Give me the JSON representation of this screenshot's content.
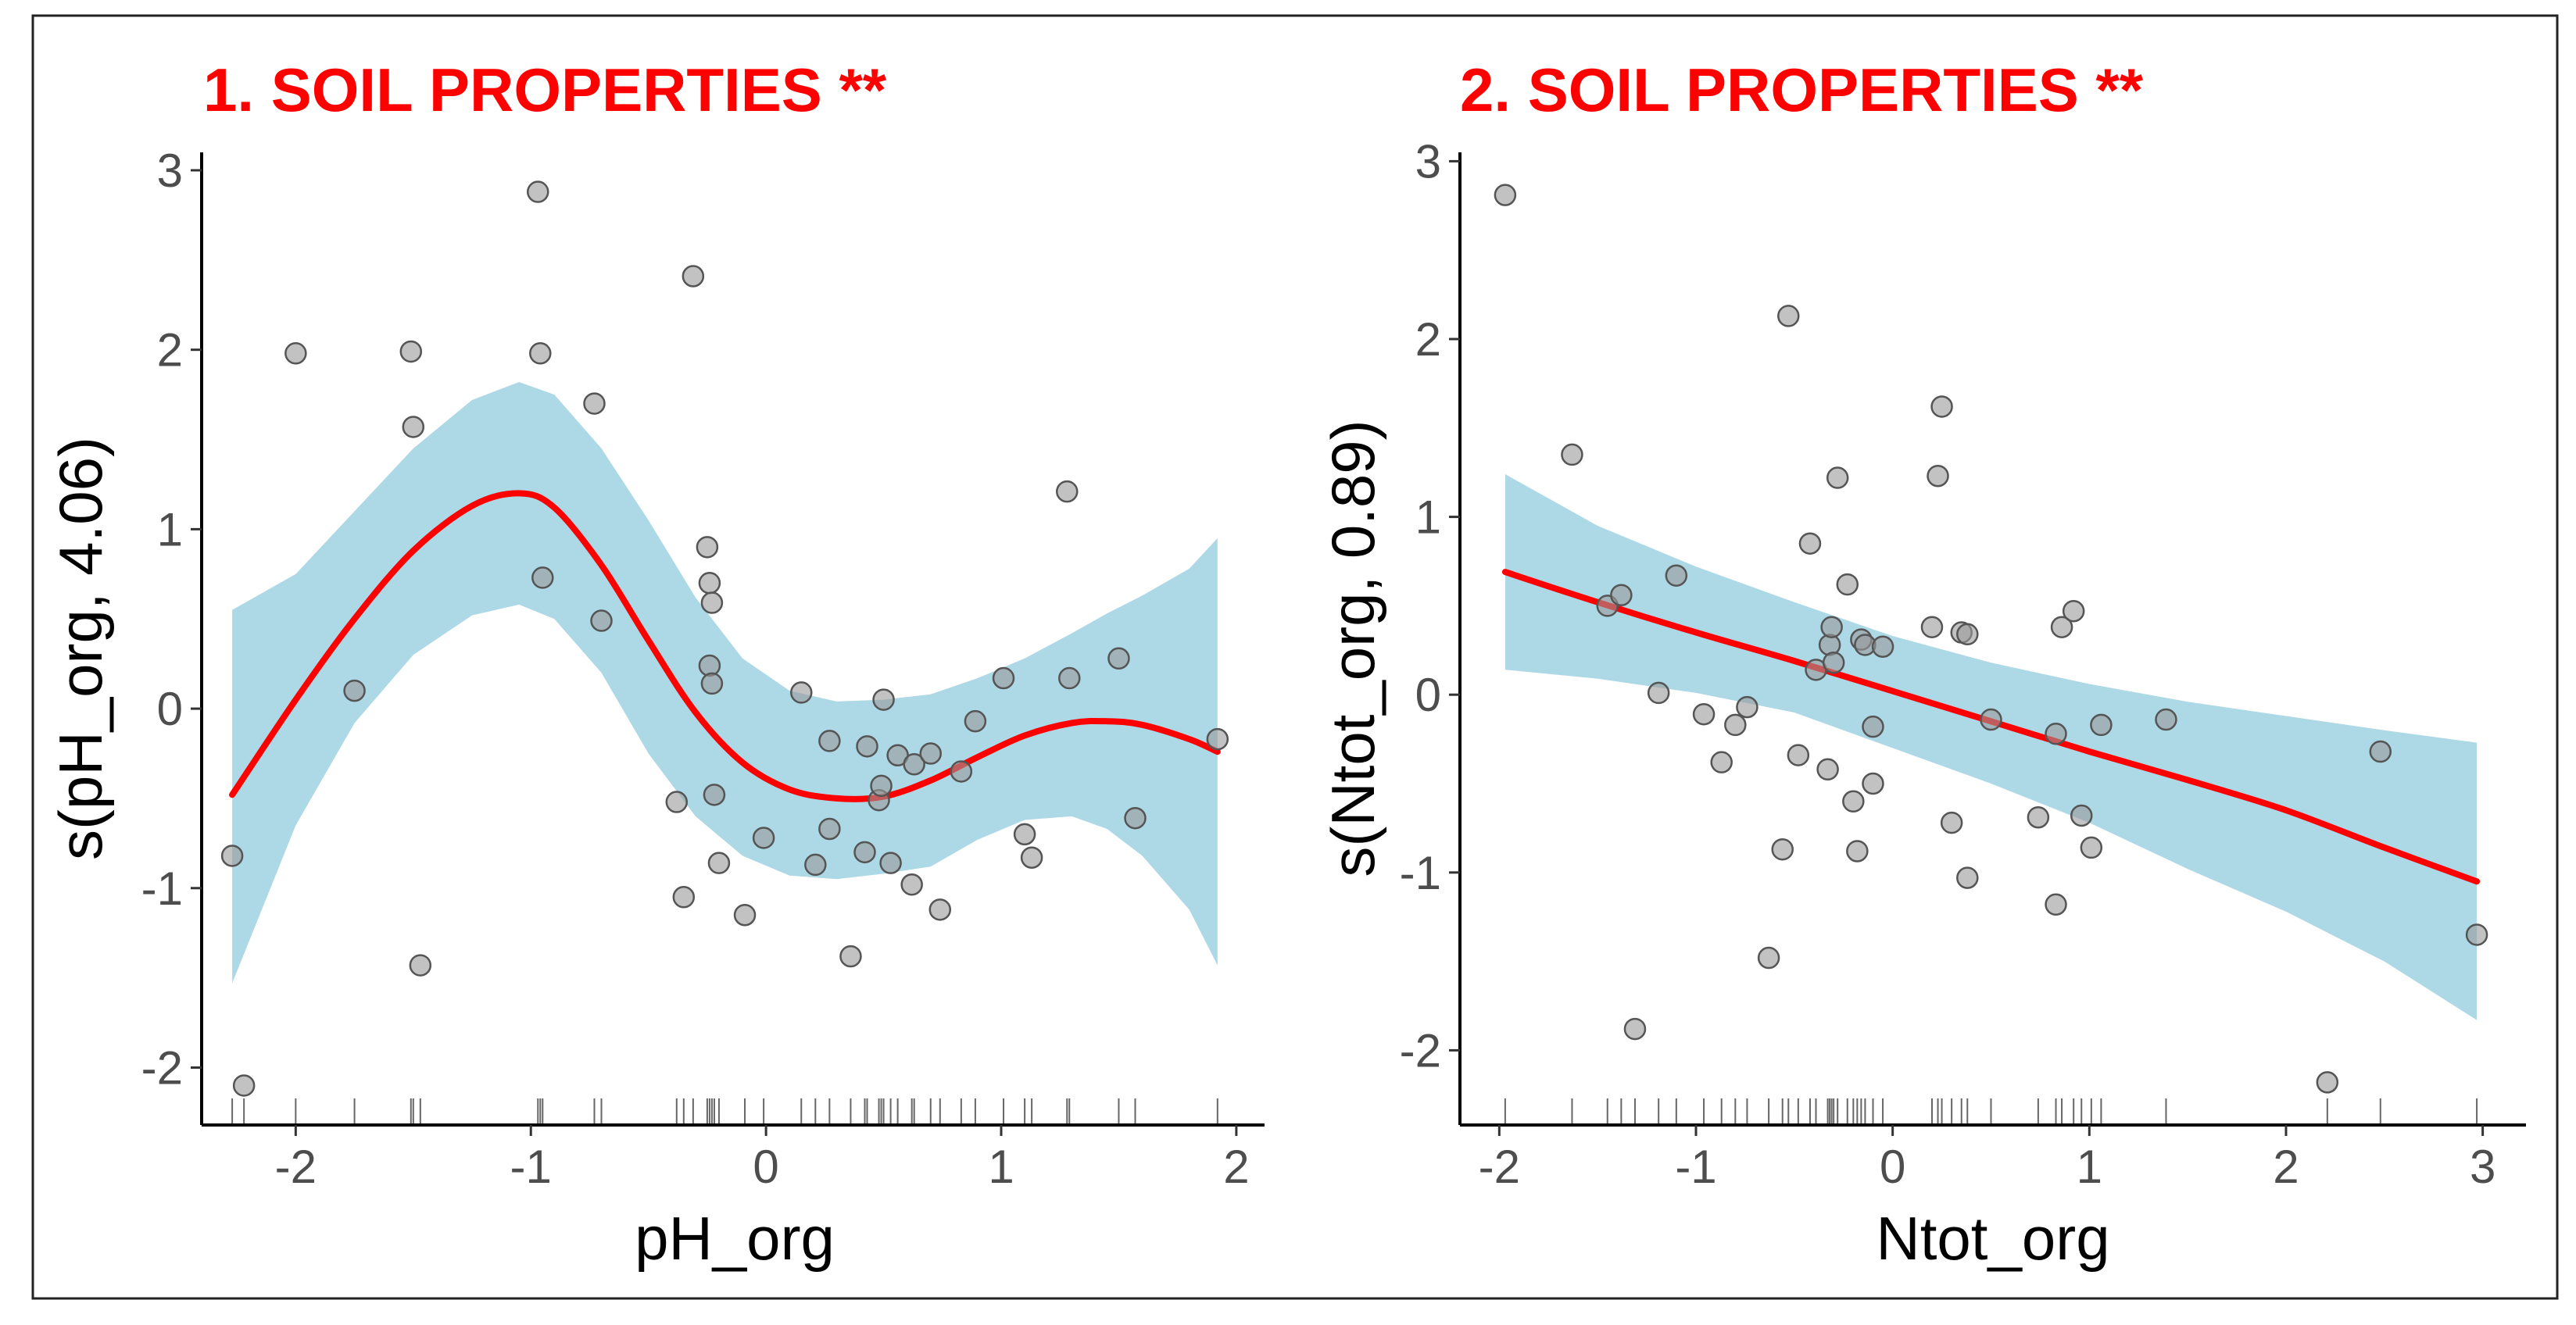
{
  "colors": {
    "title": "#ff0000",
    "band": "#add8e6",
    "line": "#ff0000",
    "point_fill": "#999999",
    "point_stroke": "#555555",
    "axis": "#000000",
    "rug": "#666666"
  },
  "chart_data": [
    {
      "type": "scatter",
      "title": "1. SOIL PROPERTIES **",
      "xlabel": "pH_org",
      "ylabel": "s(pH_org, 4.06)",
      "xlim": [
        -2.4,
        2.12
      ],
      "ylim": [
        -2.32,
        3.1
      ],
      "xticks": [
        -2,
        -1,
        0,
        1,
        2
      ],
      "yticks": [
        -2,
        -1,
        0,
        1,
        2,
        3
      ],
      "xtick_labels": [
        "-2",
        "-1",
        "0",
        "1",
        "2"
      ],
      "ytick_labels": [
        "-2",
        "-1",
        "0",
        "1",
        "2",
        "3"
      ],
      "smooth": {
        "x": [
          -2.27,
          -2.0,
          -1.75,
          -1.5,
          -1.25,
          -1.05,
          -0.9,
          -0.7,
          -0.5,
          -0.3,
          -0.1,
          0.1,
          0.3,
          0.5,
          0.7,
          0.9,
          1.1,
          1.3,
          1.45,
          1.6,
          1.8,
          1.92
        ],
        "y": [
          -0.48,
          0.05,
          0.5,
          0.88,
          1.13,
          1.2,
          1.12,
          0.8,
          0.38,
          -0.02,
          -0.3,
          -0.45,
          -0.5,
          -0.49,
          -0.4,
          -0.27,
          -0.15,
          -0.08,
          -0.07,
          -0.09,
          -0.17,
          -0.24
        ],
        "upper": [
          0.55,
          0.75,
          1.1,
          1.45,
          1.72,
          1.82,
          1.75,
          1.45,
          1.05,
          0.62,
          0.28,
          0.1,
          0.04,
          0.05,
          0.08,
          0.17,
          0.28,
          0.42,
          0.53,
          0.63,
          0.78,
          0.95
        ],
        "lower": [
          -1.53,
          -0.65,
          -0.08,
          0.3,
          0.52,
          0.58,
          0.5,
          0.2,
          -0.25,
          -0.6,
          -0.82,
          -0.93,
          -0.95,
          -0.92,
          -0.88,
          -0.73,
          -0.62,
          -0.6,
          -0.67,
          -0.82,
          -1.12,
          -1.43
        ]
      },
      "points": [
        [
          -2.27,
          -0.82
        ],
        [
          -2.22,
          -2.1
        ],
        [
          -2.0,
          1.98
        ],
        [
          -1.75,
          0.1
        ],
        [
          -1.51,
          1.99
        ],
        [
          -1.5,
          1.57
        ],
        [
          -1.47,
          -1.43
        ],
        [
          -0.97,
          2.88
        ],
        [
          -0.96,
          1.98
        ],
        [
          -0.95,
          0.73
        ],
        [
          -0.73,
          1.7
        ],
        [
          -0.7,
          0.49
        ],
        [
          -0.38,
          -0.52
        ],
        [
          -0.35,
          -1.05
        ],
        [
          -0.31,
          2.41
        ],
        [
          -0.25,
          0.9
        ],
        [
          -0.24,
          0.7
        ],
        [
          -0.23,
          0.59
        ],
        [
          -0.24,
          0.24
        ],
        [
          -0.23,
          0.14
        ],
        [
          -0.22,
          -0.48
        ],
        [
          -0.2,
          -0.86
        ],
        [
          -0.09,
          -1.15
        ],
        [
          -0.01,
          -0.72
        ],
        [
          0.15,
          0.09
        ],
        [
          0.21,
          -0.87
        ],
        [
          0.27,
          -0.67
        ],
        [
          0.27,
          -0.18
        ],
        [
          0.36,
          -1.38
        ],
        [
          0.42,
          -0.8
        ],
        [
          0.43,
          -0.21
        ],
        [
          0.48,
          -0.51
        ],
        [
          0.49,
          -0.43
        ],
        [
          0.5,
          0.05
        ],
        [
          0.53,
          -0.86
        ],
        [
          0.56,
          -0.26
        ],
        [
          0.62,
          -0.98
        ],
        [
          0.63,
          -0.31
        ],
        [
          0.7,
          -0.25
        ],
        [
          0.74,
          -1.12
        ],
        [
          0.83,
          -0.35
        ],
        [
          0.89,
          -0.07
        ],
        [
          1.01,
          0.17
        ],
        [
          1.1,
          -0.7
        ],
        [
          1.13,
          -0.83
        ],
        [
          1.28,
          1.21
        ],
        [
          1.29,
          0.17
        ],
        [
          1.5,
          0.28
        ],
        [
          1.57,
          -0.61
        ],
        [
          1.92,
          -0.17
        ]
      ],
      "rug": [
        -2.27,
        -2.22,
        -2.0,
        -1.75,
        -1.51,
        -1.5,
        -1.47,
        -0.97,
        -0.96,
        -0.95,
        -0.73,
        -0.7,
        -0.38,
        -0.35,
        -0.31,
        -0.25,
        -0.24,
        -0.23,
        -0.22,
        -0.2,
        -0.09,
        -0.01,
        0.15,
        0.21,
        0.27,
        0.36,
        0.42,
        0.43,
        0.48,
        0.49,
        0.5,
        0.53,
        0.56,
        0.62,
        0.63,
        0.7,
        0.74,
        0.83,
        0.89,
        1.01,
        1.1,
        1.13,
        1.28,
        1.29,
        1.5,
        1.57,
        1.92
      ]
    },
    {
      "type": "scatter",
      "title": "2. SOIL PROPERTIES **",
      "xlabel": "Ntot_org",
      "ylabel": "s(Ntot_org, 0.89)",
      "xlim": [
        -2.2,
        3.22
      ],
      "ylim": [
        -2.42,
        3.05
      ],
      "xticks": [
        -2,
        -1,
        0,
        1,
        2,
        3
      ],
      "yticks": [
        -2,
        -1,
        0,
        1,
        2,
        3
      ],
      "xtick_labels": [
        "-2",
        "-1",
        "0",
        "1",
        "2",
        "3"
      ],
      "ytick_labels": [
        "-2",
        "-1",
        "0",
        "1",
        "2",
        "3"
      ],
      "smooth": {
        "x": [
          -1.97,
          -1.5,
          -1.0,
          -0.5,
          0.0,
          0.5,
          1.0,
          1.5,
          2.0,
          2.5,
          2.97
        ],
        "y": [
          0.69,
          0.52,
          0.35,
          0.19,
          0.02,
          -0.15,
          -0.32,
          -0.48,
          -0.65,
          -0.86,
          -1.05
        ],
        "upper": [
          1.24,
          0.95,
          0.72,
          0.52,
          0.33,
          0.18,
          0.06,
          -0.04,
          -0.12,
          -0.2,
          -0.27
        ],
        "lower": [
          0.14,
          0.09,
          0.01,
          -0.1,
          -0.3,
          -0.5,
          -0.72,
          -0.98,
          -1.22,
          -1.5,
          -1.83
        ]
      },
      "points": [
        [
          -1.97,
          2.81
        ],
        [
          -1.63,
          1.35
        ],
        [
          -1.45,
          0.5
        ],
        [
          -1.38,
          0.56
        ],
        [
          -1.31,
          -1.88
        ],
        [
          -1.19,
          0.01
        ],
        [
          -1.1,
          0.67
        ],
        [
          -0.96,
          -0.11
        ],
        [
          -0.87,
          -0.38
        ],
        [
          -0.8,
          -0.17
        ],
        [
          -0.74,
          -0.07
        ],
        [
          -0.63,
          -1.48
        ],
        [
          -0.56,
          -0.87
        ],
        [
          -0.53,
          2.13
        ],
        [
          -0.48,
          -0.34
        ],
        [
          -0.42,
          0.85
        ],
        [
          -0.39,
          0.14
        ],
        [
          -0.33,
          -0.42
        ],
        [
          -0.32,
          0.28
        ],
        [
          -0.31,
          0.38
        ],
        [
          -0.3,
          0.18
        ],
        [
          -0.28,
          1.22
        ],
        [
          -0.23,
          0.62
        ],
        [
          -0.2,
          -0.6
        ],
        [
          -0.18,
          -0.88
        ],
        [
          -0.16,
          0.31
        ],
        [
          -0.14,
          0.28
        ],
        [
          -0.1,
          -0.18
        ],
        [
          -0.1,
          -0.5
        ],
        [
          -0.05,
          0.27
        ],
        [
          0.2,
          0.38
        ],
        [
          0.23,
          1.23
        ],
        [
          0.25,
          1.62
        ],
        [
          0.3,
          -0.72
        ],
        [
          0.35,
          0.35
        ],
        [
          0.38,
          0.34
        ],
        [
          0.38,
          -1.03
        ],
        [
          0.5,
          -0.14
        ],
        [
          0.74,
          -0.69
        ],
        [
          0.83,
          -1.18
        ],
        [
          0.83,
          -0.22
        ],
        [
          0.86,
          0.38
        ],
        [
          0.92,
          0.47
        ],
        [
          0.96,
          -0.68
        ],
        [
          1.01,
          -0.86
        ],
        [
          1.06,
          -0.17
        ],
        [
          1.39,
          -0.14
        ],
        [
          2.21,
          -2.18
        ],
        [
          2.48,
          -0.32
        ],
        [
          2.97,
          -1.35
        ]
      ],
      "rug": [
        -1.97,
        -1.63,
        -1.45,
        -1.38,
        -1.31,
        -1.19,
        -1.1,
        -0.96,
        -0.87,
        -0.8,
        -0.74,
        -0.63,
        -0.56,
        -0.53,
        -0.48,
        -0.42,
        -0.39,
        -0.33,
        -0.32,
        -0.31,
        -0.3,
        -0.28,
        -0.23,
        -0.2,
        -0.18,
        -0.16,
        -0.14,
        -0.1,
        -0.05,
        0.2,
        0.23,
        0.25,
        0.3,
        0.35,
        0.38,
        0.5,
        0.74,
        0.83,
        0.86,
        0.92,
        0.96,
        1.01,
        1.06,
        1.39,
        2.21,
        2.48,
        2.97
      ]
    }
  ]
}
